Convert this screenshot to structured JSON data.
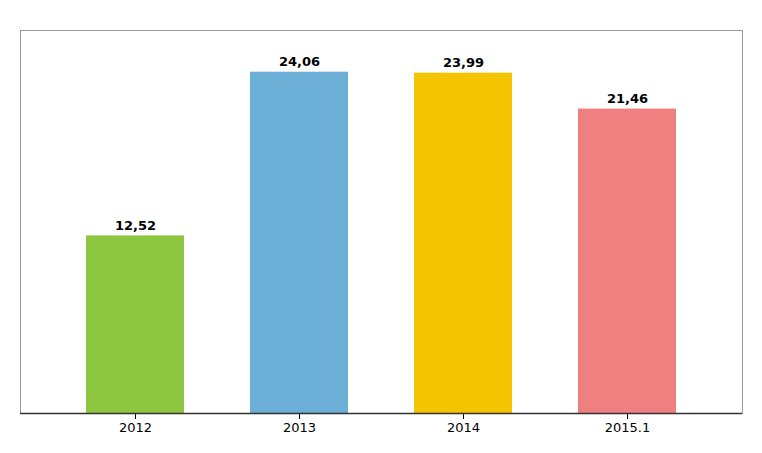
{
  "chart_data": {
    "type": "bar",
    "categories": [
      "2012",
      "2013",
      "2014",
      "2015.1"
    ],
    "values": [
      12.52,
      24.06,
      23.99,
      21.46
    ],
    "value_labels": [
      "12,52",
      "24,06",
      "23,99",
      "21,46"
    ],
    "data_labels": true,
    "colors": [
      "#8dc63f",
      "#6baed6",
      "#f5c400",
      "#f08080"
    ],
    "ylim": [
      0,
      27
    ],
    "tick_labels": "x",
    "grid": false
  }
}
